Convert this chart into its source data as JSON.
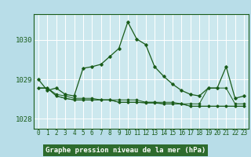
{
  "title": "Graphe pression niveau de la mer (hPa)",
  "bg_color": "#b8dde8",
  "plot_bg_color": "#cce8ee",
  "grid_color": "#ffffff",
  "line_color": "#1a5c1a",
  "marker_color": "#1a5c1a",
  "xlabel_bg": "#2d6b2d",
  "xlabel_fg": "#ffffff",
  "xlim": [
    -0.5,
    23.5
  ],
  "ylim": [
    1027.75,
    1030.65
  ],
  "yticks": [
    1028,
    1029,
    1030
  ],
  "xticks": [
    0,
    1,
    2,
    3,
    4,
    5,
    6,
    7,
    8,
    9,
    10,
    11,
    12,
    13,
    14,
    15,
    16,
    17,
    18,
    19,
    20,
    21,
    22,
    23
  ],
  "hours": [
    0,
    1,
    2,
    3,
    4,
    5,
    6,
    7,
    8,
    9,
    10,
    11,
    12,
    13,
    14,
    15,
    16,
    17,
    18,
    19,
    20,
    21,
    22,
    23
  ],
  "pressure": [
    1029.0,
    1028.72,
    1028.78,
    1028.62,
    1028.58,
    1029.28,
    1029.32,
    1029.38,
    1029.58,
    1029.78,
    1030.45,
    1030.02,
    1029.88,
    1029.32,
    1029.08,
    1028.88,
    1028.72,
    1028.62,
    1028.58,
    1028.78,
    1028.78,
    1029.32,
    1028.52,
    1028.58
  ],
  "pressure2": [
    1028.78,
    1028.78,
    1028.62,
    1028.58,
    1028.52,
    1028.52,
    1028.52,
    1028.48,
    1028.48,
    1028.48,
    1028.48,
    1028.48,
    1028.42,
    1028.42,
    1028.42,
    1028.42,
    1028.38,
    1028.38,
    1028.38,
    1028.78,
    1028.78,
    1028.78,
    1028.38,
    1028.38
  ],
  "pressure3": [
    1028.78,
    1028.78,
    1028.58,
    1028.52,
    1028.48,
    1028.48,
    1028.48,
    1028.48,
    1028.48,
    1028.42,
    1028.42,
    1028.42,
    1028.42,
    1028.42,
    1028.38,
    1028.38,
    1028.38,
    1028.32,
    1028.32,
    1028.32,
    1028.32,
    1028.32,
    1028.32,
    1028.32
  ],
  "pressure4": [
    1028.78,
    1028.78,
    1028.58,
    1028.52,
    1028.48,
    1028.48,
    1028.48,
    1028.48,
    1028.48,
    1028.42,
    1028.42,
    1028.42,
    1028.4,
    1028.4,
    1028.38,
    1028.38,
    1028.38,
    1028.32,
    1028.32,
    1028.32,
    1028.32,
    1028.32,
    1028.32,
    1028.32
  ],
  "tick_fontsize": 5.5,
  "ytick_fontsize": 6.5
}
